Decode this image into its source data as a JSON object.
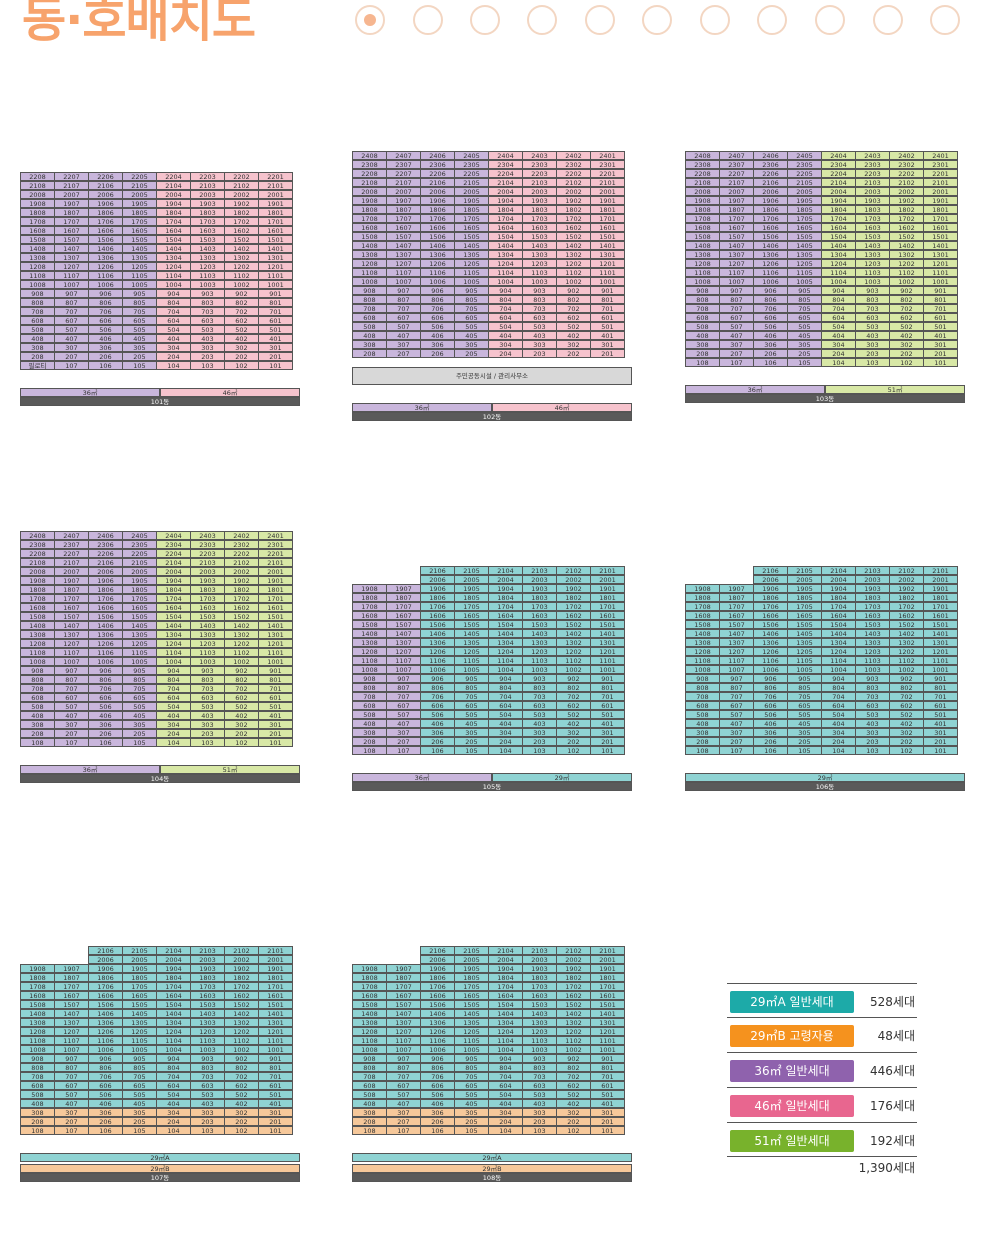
{
  "title": "동·호배치도",
  "colors": {
    "29A": "#1daaa8",
    "29B": "#f5921e",
    "36": "#8f62ad",
    "46": "#e8668f",
    "51": "#78b22c",
    "cell_29A": "#8fd3d3",
    "cell_29B": "#f6c89a",
    "cell_36": "#c9b6dc",
    "cell_46": "#f6c3cd",
    "cell_51": "#d8e8a6"
  },
  "buildings": [
    {
      "name": "101동",
      "top": 22,
      "cols": 8,
      "types": [
        [
          "36",
          "36",
          "36",
          "36",
          "46",
          "46",
          "46",
          "46"
        ]
      ],
      "special_first_cell": "필로티",
      "bars": [
        "36㎡",
        "46㎡"
      ]
    },
    {
      "name": "102동",
      "top": 24,
      "cols": 8,
      "types": [
        [
          "36",
          "36",
          "36",
          "36",
          "46",
          "46",
          "46",
          "46"
        ]
      ],
      "amenity": "주민공동시설 / 관리사무소",
      "bars": [
        "36㎡",
        "46㎡"
      ]
    },
    {
      "name": "103동",
      "top": 24,
      "cols": 8,
      "types": [
        [
          "36",
          "36",
          "36",
          "36",
          "51",
          "51",
          "51",
          "51"
        ]
      ],
      "bars": [
        "36㎡",
        "51㎡"
      ]
    },
    {
      "name": "104동",
      "top": 24,
      "cols": 8,
      "types": [
        [
          "36",
          "36",
          "36",
          "36",
          "51",
          "51",
          "51",
          "51"
        ]
      ],
      "bars": [
        "36㎡",
        "51㎡"
      ]
    },
    {
      "name": "105동",
      "top": 21,
      "cols": 8,
      "types": [
        [
          "36",
          "36",
          "29A",
          "29A",
          "29A",
          "29A",
          "29A",
          "29A"
        ]
      ],
      "bars": [
        "36㎡",
        "29㎡"
      ]
    },
    {
      "name": "106동",
      "top": 21,
      "cols": 8,
      "types": [
        [
          "29A",
          "29A",
          "29A",
          "29A",
          "29A",
          "29A",
          "29A",
          "29A"
        ]
      ],
      "bars": [
        "29㎡"
      ]
    },
    {
      "name": "107동",
      "top": 21,
      "cols": 8,
      "types": [
        [
          "29A"
        ]
      ],
      "bars": [
        "29㎡A",
        "29㎡B"
      ]
    },
    {
      "name": "108동",
      "top": 21,
      "cols": 8,
      "types": [
        [
          "29A"
        ]
      ],
      "bars": [
        "29㎡A",
        "29㎡B"
      ]
    }
  ],
  "legend": [
    {
      "label": "29㎡A 일반세대",
      "count": "528세대",
      "color": "#1daaa8"
    },
    {
      "label": "29㎡B 고령자용",
      "count": "48세대",
      "color": "#f5921e"
    },
    {
      "label": "36㎡ 일반세대",
      "count": "446세대",
      "color": "#8f62ad"
    },
    {
      "label": "46㎡ 일반세대",
      "count": "176세대",
      "color": "#e8668f"
    },
    {
      "label": "51㎡ 일반세대",
      "count": "192세대",
      "color": "#78b22c"
    }
  ],
  "legend_total": "1,390세대"
}
